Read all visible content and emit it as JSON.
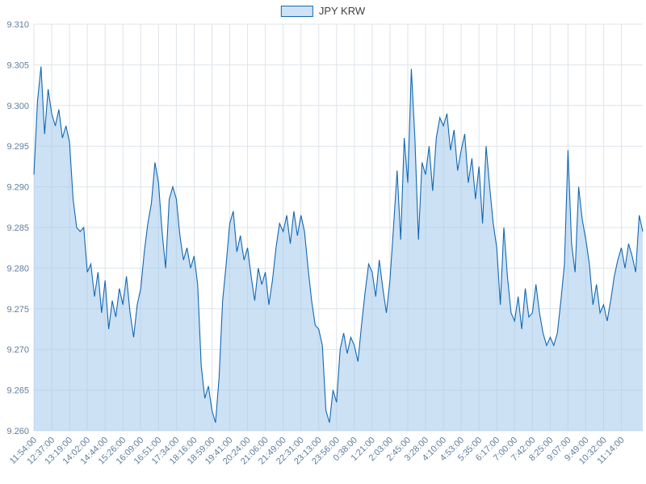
{
  "legend": {
    "label": "JPY KRW"
  },
  "chart_data": {
    "type": "area",
    "title": "",
    "xlabel": "",
    "ylabel": "",
    "ylim": [
      9.26,
      9.31
    ],
    "y_tick_step": 0.005,
    "grid": true,
    "legend_position": "top-center",
    "x_tick_every": 5,
    "x_tick_labels": [
      "11:54:00",
      "12:37:00",
      "13:19:00",
      "14:02:00",
      "14:44:00",
      "15:26:00",
      "16:09:00",
      "16:51:00",
      "17:34:00",
      "18:16:00",
      "18:59:00",
      "19:41:00",
      "20:24:00",
      "21:06:00",
      "21:49:00",
      "22:31:00",
      "23:13:00",
      "23:56:00",
      "0:38:00",
      "1:21:00",
      "2:03:00",
      "2:45:00",
      "3:28:00",
      "4:10:00",
      "4:53:00",
      "5:35:00",
      "6:17:00",
      "7:00:00",
      "7:42:00",
      "8:25:00",
      "9:07:00",
      "9:49:00",
      "10:32:00",
      "11:14:00"
    ],
    "series": [
      {
        "name": "JPY KRW",
        "values": [
          9.2915,
          9.3005,
          9.3048,
          9.2965,
          9.302,
          9.299,
          9.2975,
          9.2995,
          9.296,
          9.2975,
          9.2955,
          9.2885,
          9.285,
          9.2845,
          9.285,
          9.2795,
          9.2805,
          9.2765,
          9.2795,
          9.2745,
          9.2785,
          9.2725,
          9.276,
          9.274,
          9.2775,
          9.2755,
          9.279,
          9.2745,
          9.2715,
          9.2755,
          9.2775,
          9.282,
          9.2855,
          9.288,
          9.293,
          9.2905,
          9.2845,
          9.28,
          9.2885,
          9.29,
          9.2885,
          9.284,
          9.281,
          9.2825,
          9.28,
          9.2815,
          9.278,
          9.268,
          9.264,
          9.2655,
          9.2625,
          9.261,
          9.2665,
          9.276,
          9.2805,
          9.2855,
          9.287,
          9.282,
          9.284,
          9.281,
          9.2825,
          9.279,
          9.276,
          9.28,
          9.278,
          9.2795,
          9.2755,
          9.2785,
          9.2825,
          9.2855,
          9.2845,
          9.2865,
          9.283,
          9.287,
          9.284,
          9.2865,
          9.2845,
          9.28,
          9.276,
          9.273,
          9.2725,
          9.2705,
          9.2625,
          9.261,
          9.265,
          9.2635,
          9.27,
          9.272,
          9.2695,
          9.2715,
          9.2705,
          9.2685,
          9.273,
          9.277,
          9.2805,
          9.2795,
          9.2765,
          9.281,
          9.2775,
          9.2745,
          9.2785,
          9.285,
          9.292,
          9.2835,
          9.296,
          9.2905,
          9.3045,
          9.296,
          9.2835,
          9.293,
          9.2915,
          9.295,
          9.2895,
          9.296,
          9.2985,
          9.2975,
          9.299,
          9.2945,
          9.297,
          9.292,
          9.2945,
          9.2965,
          9.2905,
          9.2935,
          9.2885,
          9.2925,
          9.2855,
          9.295,
          9.29,
          9.2855,
          9.2825,
          9.2755,
          9.285,
          9.279,
          9.2745,
          9.2735,
          9.2765,
          9.2725,
          9.2775,
          9.274,
          9.2745,
          9.278,
          9.2745,
          9.272,
          9.2705,
          9.2715,
          9.2705,
          9.272,
          9.276,
          9.2805,
          9.2945,
          9.283,
          9.2795,
          9.29,
          9.286,
          9.2835,
          9.2805,
          9.2755,
          9.278,
          9.2745,
          9.2755,
          9.2735,
          9.276,
          9.279,
          9.281,
          9.2825,
          9.28,
          9.283,
          9.2815,
          9.2795,
          9.2865,
          9.2845
        ]
      }
    ],
    "colors": {
      "line": "#1268b3",
      "fill": "rgba(163,201,235,0.55)",
      "grid": "#dde4ea",
      "tick_text": "#5f7e9e"
    }
  }
}
